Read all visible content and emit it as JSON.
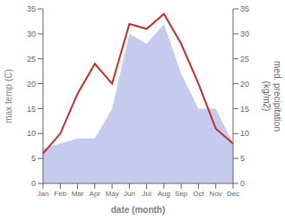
{
  "chart_data": {
    "type": "line",
    "categories": [
      "Jan",
      "Feb",
      "Mar",
      "Apr",
      "May",
      "Jun",
      "Jul",
      "Aug",
      "Sep",
      "Oct",
      "Nov",
      "Dec"
    ],
    "xlabel": "date (month)",
    "ylabel": "max temp (C)",
    "y2label": "med. precipitation\n(kg/m2)",
    "ylim": [
      0,
      35
    ],
    "yticks": [
      0,
      5,
      10,
      15,
      20,
      25,
      30,
      35
    ],
    "y2lim": [
      0,
      35
    ],
    "y2ticks": [
      0,
      5,
      10,
      15,
      20,
      25,
      30,
      35
    ],
    "series": [
      {
        "type": "area",
        "color": "#c5caee",
        "axis": "y2",
        "values": [
          7,
          8,
          9,
          9,
          15,
          30,
          28,
          32,
          22,
          15,
          15,
          8
        ]
      },
      {
        "type": "line",
        "color": "#c03030",
        "values": [
          6,
          10,
          18,
          24,
          20,
          32,
          31,
          34,
          28,
          20,
          11,
          8
        ]
      }
    ]
  }
}
